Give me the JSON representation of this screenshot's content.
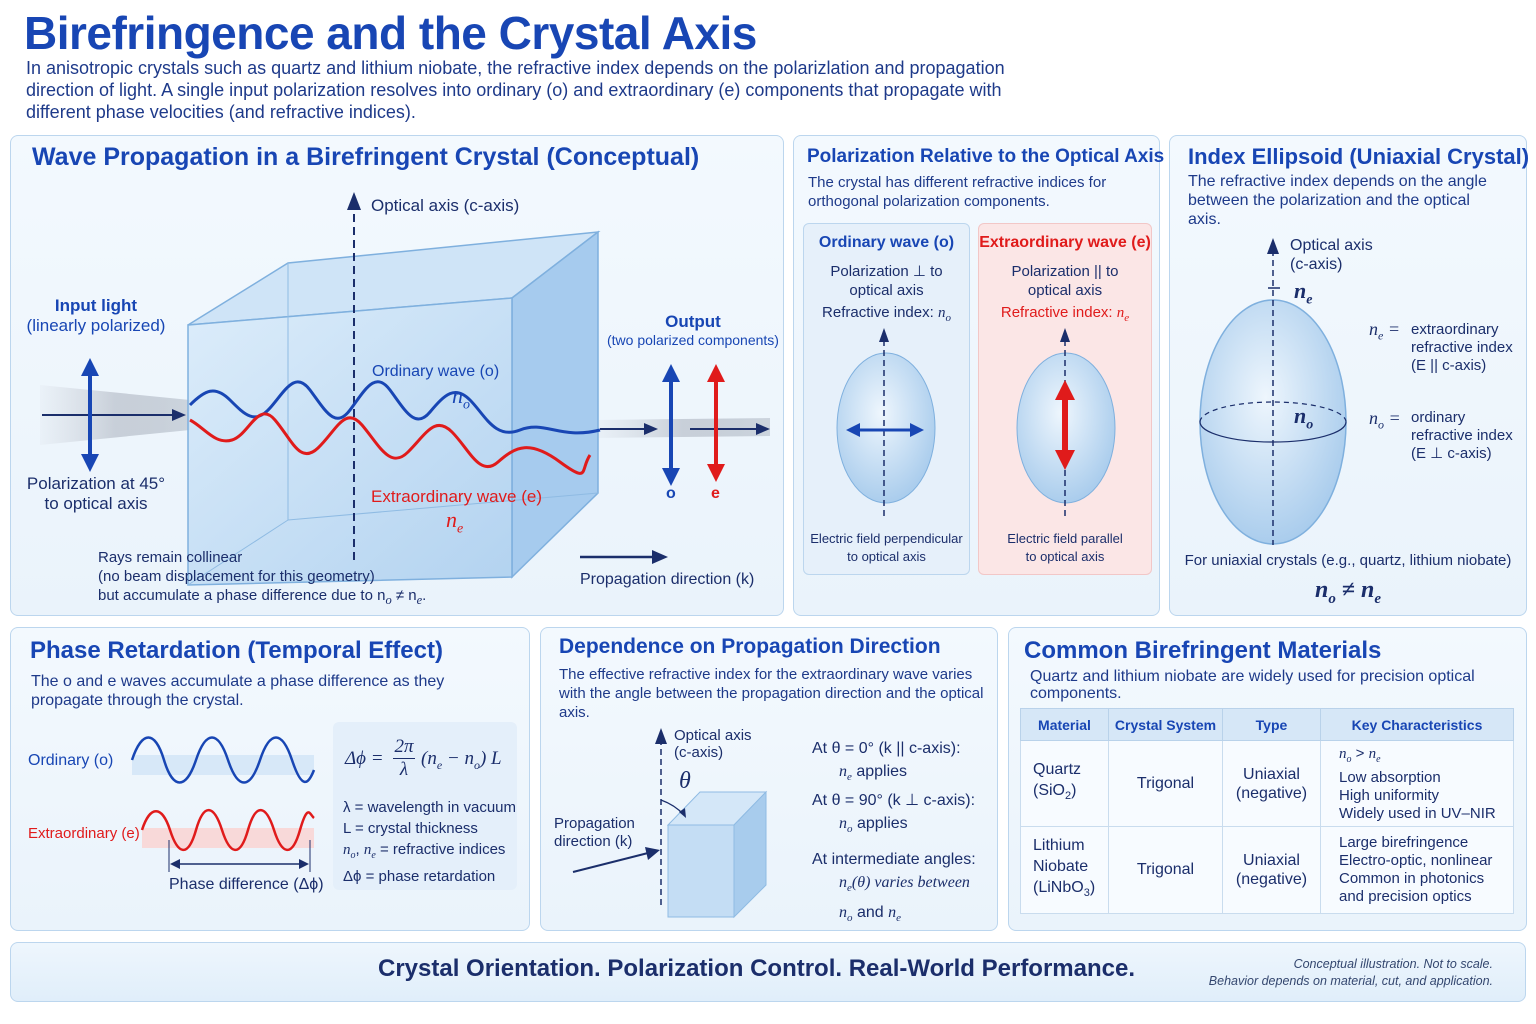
{
  "title": "Birefringence and the Crystal Axis",
  "intro": "In anisotropic crystals such as quartz and lithium niobate, the refractive index depends on the polarizlation and propagation direction of light. A single input polarization resolves into ordinary (o) and extraordinary (e) components that propagate with different phase velocities (and refractive indices).",
  "wave_panel": {
    "title": "Wave Propagation in a Birefringent Crystal (Conceptual)",
    "optical_axis": "Optical axis (c-axis)",
    "input_light": "Input light",
    "input_light_sub": "(linearly polarized)",
    "polarization_45": "Polarization at 45°",
    "polarization_45_sub": "to optical axis",
    "ordinary_wave": "Ordinary wave (o)",
    "n_o": "n",
    "n_o_sub": "o",
    "extraordinary_wave": "Extraordinary wave (e)",
    "n_e": "n",
    "n_e_sub": "e",
    "output": "Output",
    "output_sub": "(two polarized components)",
    "o_label": "o",
    "e_label": "e",
    "rays_line1": "Rays remain collinear",
    "rays_line2": "(no beam displacement for this geometry)",
    "rays_line3": "but accumulate a phase difference due to n",
    "rays_line3_mid": " ≠ n",
    "propagation": "Propagation direction (k)"
  },
  "polarization_panel": {
    "title": "Polarization Relative to the Optical Axis",
    "desc": "The crystal has different refractive indices for orthogonal polarization components.",
    "ordinary": {
      "title": "Ordinary wave (o)",
      "line1": "Polarization ⊥ to",
      "line2": "optical axis",
      "index": "Refractive index: ",
      "footer1": "Electric field perpendicular",
      "footer2": "to optical axis"
    },
    "extraordinary": {
      "title": "Extraordinary wave (e)",
      "line1": "Polarization || to",
      "line2": "optical axis",
      "index": "Refractive index: ",
      "footer1": "Electric field parallel",
      "footer2": "to optical axis"
    }
  },
  "ellipsoid_panel": {
    "title": "Index Ellipsoid (Uniaxial Crystal)",
    "desc": "The refractive index depends on the angle between the polarization and the optical axis.",
    "optical_axis": "Optical axis",
    "c_axis": "(c-axis)",
    "ne_def1": "extraordinary",
    "ne_def2": "refractive index",
    "ne_def3": "(E || c-axis)",
    "no_def1": "ordinary",
    "no_def2": "refractive index",
    "no_def3": "(E ⊥ c-axis)",
    "uniaxial_note": "For uniaxial crystals (e.g., quartz, lithium niobate)",
    "inequality": "≠"
  },
  "phase_panel": {
    "title": "Phase Retardation (Temporal Effect)",
    "desc": "The o and e waves accumulate a phase difference as they propagate through the crystal.",
    "ordinary": "Ordinary (o)",
    "extraordinary": "Extraordinary (e)",
    "phase_diff": "Phase difference (Δϕ)",
    "formula_lhs": "Δϕ =",
    "formula_num": "2π",
    "formula_den": "λ",
    "formula_rhs": "(n",
    "def_lambda": "λ = wavelength in vacuum",
    "def_L": "L = crystal thickness",
    "def_n": "n",
    "def_n_rest": " = refractive indices",
    "def_phi": "Δϕ = phase retardation"
  },
  "direction_panel": {
    "title": "Dependence on Propagation Direction",
    "desc": "The effective refractive index for the extraordinary wave varies with the angle between the propagation direction and the optical axis.",
    "optical_axis": "Optical axis",
    "c_axis": "(c-axis)",
    "theta": "θ",
    "prop1": "Propagation",
    "prop2": "direction (k)",
    "at0": "At θ = 0° (k || c-axis):",
    "at0_result": " applies",
    "at90": "At θ = 90° (k ⊥ c-axis):",
    "at90_result": " applies",
    "intermediate": "At intermediate angles:",
    "intermediate_result": "(θ) varies between",
    "and": " and "
  },
  "materials_panel": {
    "title": "Common Birefringent Materials",
    "desc": "Quartz and lithium niobate are widely used for precision optical components.",
    "headers": [
      "Material",
      "Crystal System",
      "Type",
      "Key Characteristics"
    ],
    "rows": [
      {
        "material": [
          "Quartz",
          "(SiO"
        ],
        "material_sub": "2",
        "system": "Trigonal",
        "type": [
          "Uniaxial",
          "(negative)"
        ],
        "chars": [
          "n",
          "Low absorption",
          "High uniformity",
          "Widely used in UV–NIR"
        ]
      },
      {
        "material": [
          "Lithium",
          "Niobate",
          "(LiNbO"
        ],
        "material_sub": "3",
        "system": "Trigonal",
        "type": [
          "Uniaxial",
          "(negative)"
        ],
        "chars": [
          "Large birefringence",
          "Electro-optic, nonlinear",
          "Common in photonics",
          "and precision optics"
        ]
      }
    ]
  },
  "footer": {
    "tagline": "Crystal Orientation. Polarization Control. Real-World Performance.",
    "note1": "Conceptual illustration. Not to scale.",
    "note2": "Behavior depends on material, cut, and application."
  },
  "colors": {
    "blue": "#1846b4",
    "red": "#e01b1b",
    "navy": "#1b2e6b"
  }
}
